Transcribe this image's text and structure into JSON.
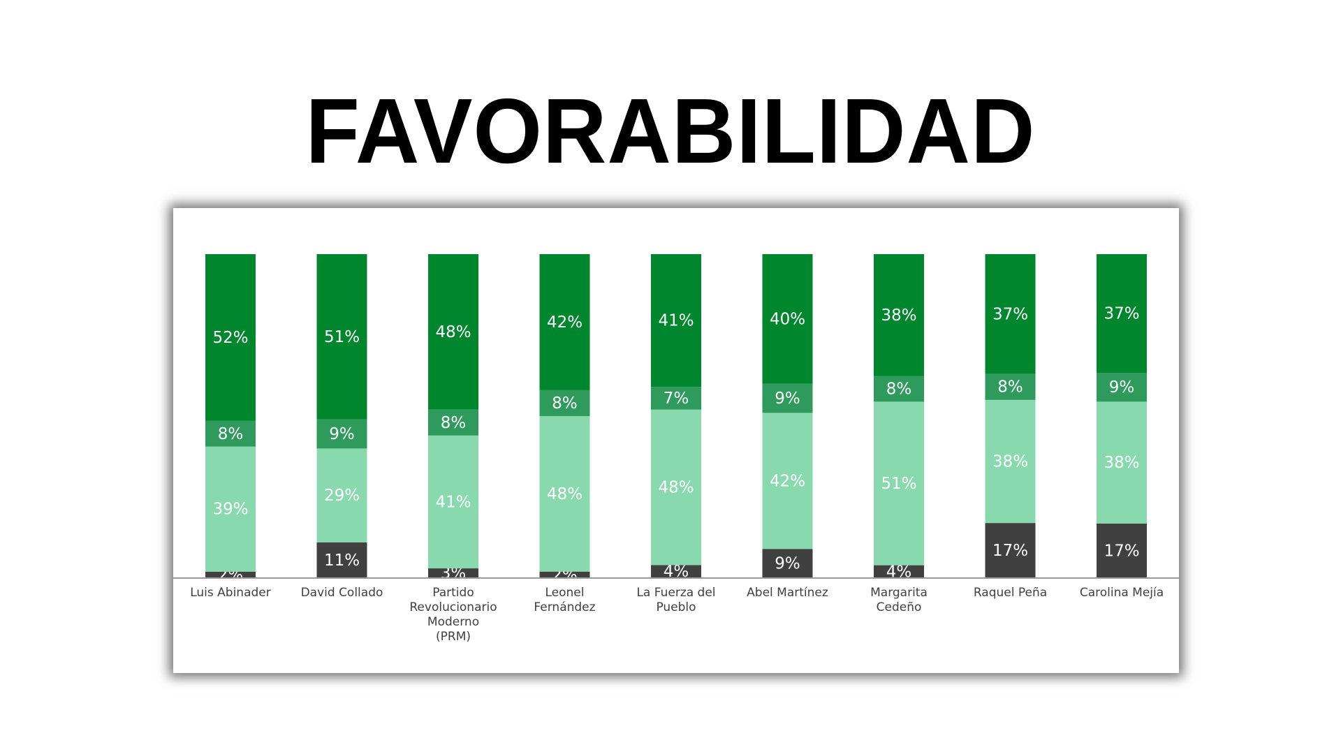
{
  "title": "FAVORABILIDAD",
  "chart_data": {
    "type": "bar",
    "stacked": true,
    "categories": [
      [
        "Luis Abinader"
      ],
      [
        "David Collado"
      ],
      [
        "Partido",
        "Revolucionario",
        "Moderno",
        "(PRM)"
      ],
      [
        "Leonel",
        "Fernández"
      ],
      [
        "La Fuerza del",
        "Pueblo"
      ],
      [
        "Abel Martínez"
      ],
      [
        "Margarita",
        "Cedeño"
      ],
      [
        "Raquel Peña"
      ],
      [
        "Carolina Mejía"
      ]
    ],
    "series": [
      {
        "color": "#404040",
        "values": [
          2,
          11,
          3,
          2,
          4,
          9,
          4,
          17,
          17
        ]
      },
      {
        "color": "#88d9ad",
        "values": [
          39,
          29,
          41,
          48,
          48,
          42,
          51,
          38,
          38
        ]
      },
      {
        "color": "#2e9a5c",
        "values": [
          8,
          9,
          8,
          8,
          7,
          9,
          8,
          8,
          9
        ]
      },
      {
        "color": "#00872e",
        "values": [
          52,
          51,
          48,
          42,
          41,
          40,
          38,
          37,
          37
        ]
      }
    ],
    "value_suffix": "%",
    "ylim": [
      0,
      100
    ],
    "grid": false,
    "legend": "none"
  }
}
